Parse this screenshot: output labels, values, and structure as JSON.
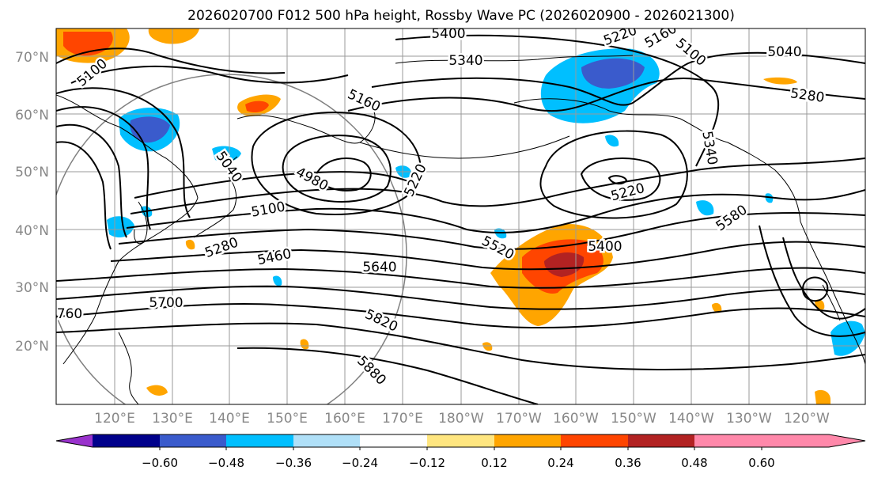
{
  "title": "2026020700 F012 500 hPa height, Rossby Wave PC (2026020900 - 2026021300)",
  "lat_labels": [
    "70°N",
    "60°N",
    "50°N",
    "40°N",
    "30°N",
    "20°N"
  ],
  "lon_labels": [
    "120°E",
    "130°E",
    "140°E",
    "150°E",
    "160°E",
    "170°E",
    "180°W",
    "170°W",
    "160°W",
    "150°W",
    "140°W",
    "130°W",
    "120°W"
  ],
  "contour_labels": [
    "5400",
    "5340",
    "5100",
    "5160",
    "5220",
    "5160",
    "5100",
    "5040",
    "5280",
    "5040",
    "4980",
    "5220",
    "5100",
    "5220",
    "5340",
    "5580",
    "5280",
    "5460",
    "5640",
    "5520",
    "5400",
    "5700",
    "760",
    "5820",
    "5880"
  ],
  "colorbar": {
    "ticks": [
      "−0.60",
      "−0.48",
      "−0.36",
      "−0.24",
      "−0.12",
      "0.12",
      "0.24",
      "0.36",
      "0.48",
      "0.60"
    ],
    "colors": [
      "#9932cc",
      "#00008b",
      "#3a5bcc",
      "#00bfff",
      "#b0e0f8",
      "#ffffff",
      "#ffe680",
      "#ffa500",
      "#ff4500",
      "#b22222",
      "#ff88aa"
    ]
  },
  "colors": {
    "contour": "#000000",
    "grid": "#9a9a9a",
    "circle": "#808080",
    "coast": "#000000"
  }
}
